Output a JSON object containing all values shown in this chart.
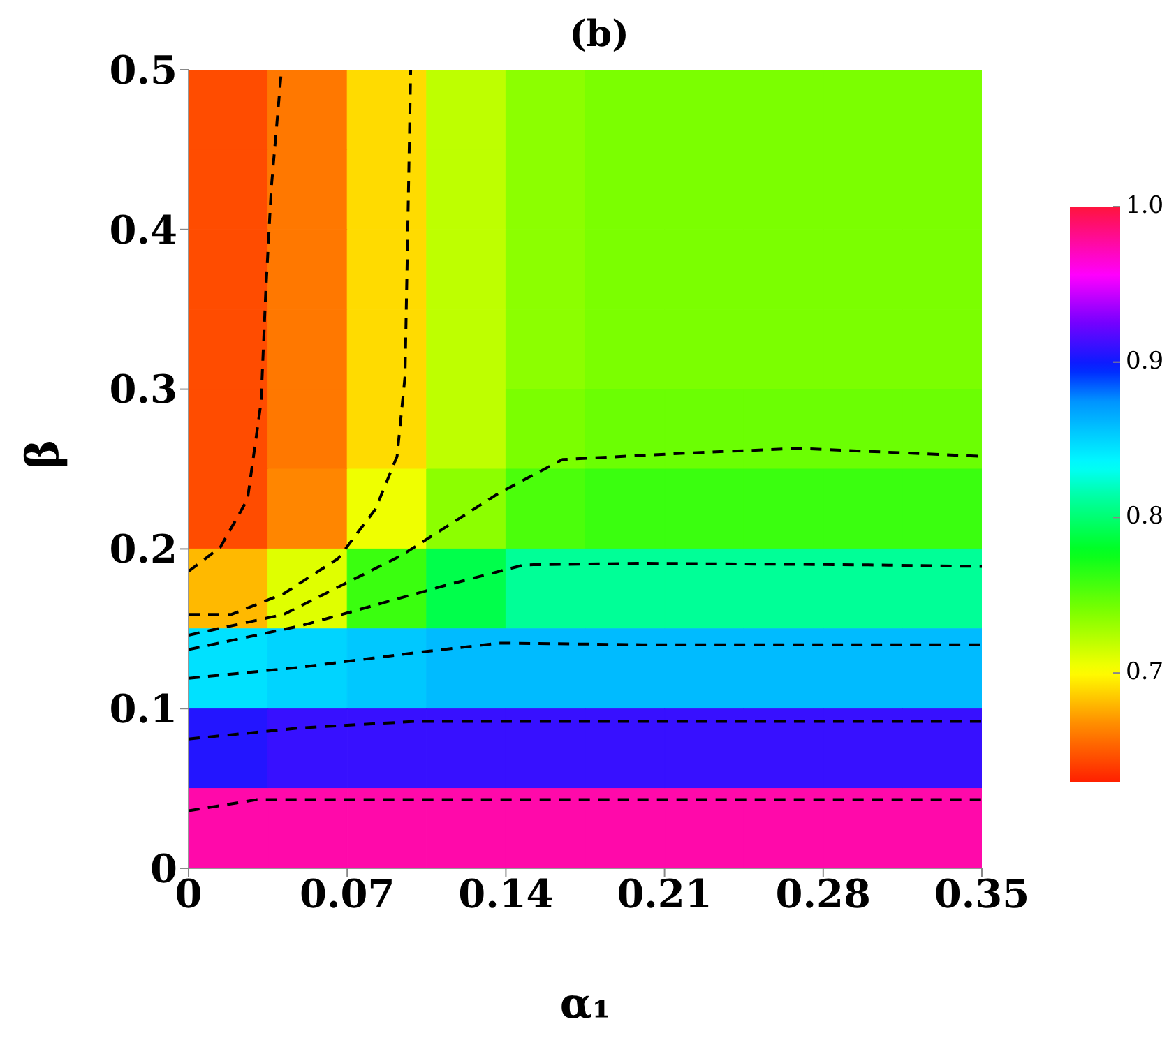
{
  "chart_data": {
    "type": "heatmap",
    "title": "(b)",
    "xlabel": "α₁",
    "ylabel": "β",
    "x": [
      0.0175,
      0.0525,
      0.0875,
      0.1225,
      0.1575,
      0.1925,
      0.2275,
      0.2625,
      0.2975,
      0.3325
    ],
    "xlim": [
      0,
      0.35
    ],
    "xticks": [
      0,
      0.07,
      0.14,
      0.21,
      0.28,
      0.35
    ],
    "ylim": [
      0,
      0.5
    ],
    "yticks": [
      0,
      0.1,
      0.2,
      0.3,
      0.4,
      0.5
    ],
    "clim": [
      0.63,
      1.0
    ],
    "cticks": [
      0.7,
      0.8,
      0.9,
      {
        "value": 1.0,
        "label": "1.0"
      }
    ],
    "cells": [
      [
        0.645,
        0.66,
        0.69,
        0.72,
        0.735,
        0.74,
        0.74,
        0.74,
        0.74,
        0.74
      ],
      [
        0.645,
        0.66,
        0.69,
        0.72,
        0.735,
        0.74,
        0.74,
        0.74,
        0.74,
        0.74
      ],
      [
        0.645,
        0.66,
        0.69,
        0.72,
        0.735,
        0.74,
        0.74,
        0.74,
        0.74,
        0.74
      ],
      [
        0.645,
        0.66,
        0.69,
        0.72,
        0.735,
        0.74,
        0.74,
        0.74,
        0.74,
        0.74
      ],
      [
        0.645,
        0.66,
        0.69,
        0.72,
        0.74,
        0.745,
        0.745,
        0.745,
        0.745,
        0.745
      ],
      [
        0.645,
        0.665,
        0.705,
        0.735,
        0.755,
        0.76,
        0.76,
        0.76,
        0.76,
        0.76
      ],
      [
        0.68,
        0.71,
        0.76,
        0.79,
        0.81,
        0.81,
        0.81,
        0.81,
        0.81,
        0.81
      ],
      [
        0.845,
        0.85,
        0.855,
        0.86,
        0.86,
        0.86,
        0.86,
        0.86,
        0.86,
        0.86
      ],
      [
        0.905,
        0.91,
        0.91,
        0.91,
        0.91,
        0.91,
        0.91,
        0.91,
        0.91,
        0.91
      ],
      [
        0.975,
        0.975,
        0.975,
        0.975,
        0.975,
        0.975,
        0.975,
        0.975,
        0.975,
        0.975
      ]
    ],
    "series": [
      {
        "type": "line",
        "color": "#000000",
        "line_style": "dashed",
        "x": [
          0,
          0.03,
          0.1,
          0.2,
          0.3,
          0.35
        ],
        "values": [
          0.036,
          0.043,
          0.043,
          0.043,
          0.043,
          0.043
        ]
      },
      {
        "type": "line",
        "color": "#000000",
        "line_style": "dashed",
        "x": [
          0,
          0.05,
          0.1,
          0.2,
          0.3,
          0.35
        ],
        "values": [
          0.081,
          0.088,
          0.092,
          0.092,
          0.092,
          0.092
        ]
      },
      {
        "type": "line",
        "color": "#000000",
        "line_style": "dashed",
        "x": [
          0,
          0.05,
          0.1,
          0.137,
          0.2,
          0.3,
          0.35
        ],
        "values": [
          0.119,
          0.126,
          0.135,
          0.141,
          0.14,
          0.14,
          0.14
        ]
      },
      {
        "type": "line",
        "color": "#000000",
        "line_style": "dashed",
        "x": [
          0,
          0.05,
          0.113,
          0.148,
          0.2,
          0.3,
          0.35
        ],
        "values": [
          0.137,
          0.152,
          0.177,
          0.19,
          0.191,
          0.19,
          0.189
        ]
      },
      {
        "type": "line",
        "color": "#000000",
        "line_style": "dashed",
        "x": [
          0,
          0.042,
          0.094,
          0.137,
          0.165,
          0.22,
          0.269,
          0.35
        ],
        "values": [
          0.146,
          0.159,
          0.196,
          0.235,
          0.256,
          0.26,
          0.263,
          0.258
        ]
      },
      {
        "type": "line",
        "color": "#000000",
        "line_style": "dashed",
        "x": [
          0,
          0.019,
          0.042,
          0.066,
          0.0825,
          0.092,
          0.0955,
          0.0966,
          0.098
        ],
        "values": [
          0.159,
          0.159,
          0.172,
          0.194,
          0.225,
          0.258,
          0.308,
          0.392,
          0.5
        ]
      },
      {
        "type": "line",
        "color": "#000000",
        "line_style": "dashed",
        "x": [
          0,
          0.014,
          0.026,
          0.032,
          0.034,
          0.0365,
          0.041
        ],
        "values": [
          0.186,
          0.201,
          0.231,
          0.292,
          0.359,
          0.426,
          0.5
        ]
      }
    ]
  }
}
